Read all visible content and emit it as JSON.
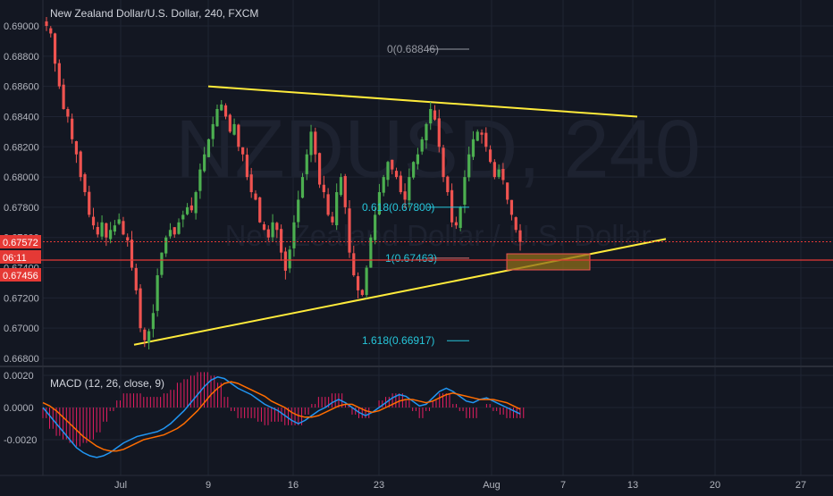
{
  "header": {
    "title": "New Zealand Dollar/U.S. Dollar, 240, FXCM",
    "watermark_main": "NZDUSD, 240",
    "watermark_sub": "New Zealand Dollar / U.S. Dollar"
  },
  "colors": {
    "background": "#131722",
    "grid": "#1f2433",
    "candle_up": "#4caf50",
    "candle_down": "#ef5350",
    "trendline": "#ffeb3b",
    "fib": "#26c6da",
    "price_line": "#e53935",
    "macd_line": "#2196f3",
    "signal_line": "#ff6d00",
    "hist_pos": "#e91e63",
    "hist_neg": "#e91e63",
    "box_fill": "#8d6e1a",
    "text": "#b2b5be"
  },
  "chart_data": [
    {
      "type": "line",
      "title": "New Zealand Dollar/U.S. Dollar, 240, FXCM",
      "subtitle": "",
      "xlabel": "",
      "ylabel": "",
      "x_ticks": [
        "Jul",
        "9",
        "16",
        "23",
        "Aug",
        "7",
        "13",
        "20",
        "27"
      ],
      "y_ticks": [
        "0.66800",
        "0.67000",
        "0.67200",
        "0.67400",
        "0.67600",
        "0.67800",
        "0.68000",
        "0.68200",
        "0.68400",
        "0.68600",
        "0.68800",
        "0.69000"
      ],
      "ylim": [
        0.6675,
        0.6905
      ],
      "grid": true,
      "legend": "none",
      "price_labels": [
        {
          "text": "0.67572",
          "value": 0.67572
        },
        {
          "text": "06:11",
          "value": 0.67463
        },
        {
          "text": "0.67456",
          "value": 0.67456
        }
      ],
      "fib_levels": [
        {
          "label": "0(0.68846)",
          "value": 0.68846
        },
        {
          "label": "0.618(0.67800)",
          "value": 0.678
        },
        {
          "label": "1(0.67463)",
          "value": 0.67463
        },
        {
          "label": "1.618(0.66917)",
          "value": 0.66917
        }
      ],
      "trendlines": [
        {
          "name": "upper",
          "points": [
            [
              0.2535,
              0.686
            ],
            [
              0.766,
              0.684
            ]
          ]
        },
        {
          "name": "lower",
          "points": [
            [
              0.163,
              0.6689
            ],
            [
              0.8,
              0.6759
            ]
          ]
        }
      ],
      "closes": [
        0.69,
        0.6895,
        0.6875,
        0.686,
        0.6845,
        0.684,
        0.6825,
        0.6815,
        0.68,
        0.679,
        0.6775,
        0.6768,
        0.6762,
        0.677,
        0.676,
        0.6765,
        0.6768,
        0.6772,
        0.6762,
        0.6758,
        0.674,
        0.6725,
        0.67,
        0.6692,
        0.6698,
        0.671,
        0.6735,
        0.675,
        0.676,
        0.6765,
        0.6762,
        0.677,
        0.6775,
        0.678,
        0.6778,
        0.679,
        0.6805,
        0.6815,
        0.6825,
        0.6835,
        0.6845,
        0.6848,
        0.684,
        0.683,
        0.6835,
        0.682,
        0.6815,
        0.68,
        0.679,
        0.6785,
        0.677,
        0.6765,
        0.676,
        0.677,
        0.6765,
        0.675,
        0.6738,
        0.6752,
        0.677,
        0.6785,
        0.68,
        0.6815,
        0.683,
        0.6815,
        0.6795,
        0.679,
        0.6775,
        0.677,
        0.679,
        0.68,
        0.678,
        0.675,
        0.6735,
        0.6725,
        0.6722,
        0.674,
        0.676,
        0.6775,
        0.679,
        0.68,
        0.681,
        0.6805,
        0.68,
        0.679,
        0.6785,
        0.68,
        0.681,
        0.6815,
        0.6825,
        0.6835,
        0.6845,
        0.6838,
        0.682,
        0.68,
        0.679,
        0.677,
        0.6768,
        0.678,
        0.68,
        0.6815,
        0.6825,
        0.683,
        0.6828,
        0.682,
        0.681,
        0.68,
        0.6805,
        0.6798,
        0.6785,
        0.6775,
        0.6765,
        0.6757
      ]
    },
    {
      "type": "line",
      "title": "MACD (12, 26, close, 9)",
      "xlabel": "",
      "ylabel": "",
      "y_ticks": [
        "0.0020",
        "0.0000",
        "-0.0020"
      ],
      "ylim": [
        -0.0038,
        0.0022
      ],
      "grid": true,
      "legend": "none",
      "series": [
        {
          "values": [
            0.0,
            -0.0005,
            -0.001,
            -0.0015,
            -0.002,
            -0.0025,
            -0.0028,
            -0.003,
            -0.0031,
            -0.003,
            -0.0028,
            -0.0025,
            -0.0022,
            -0.002,
            -0.0018,
            -0.0017,
            -0.0016,
            -0.0015,
            -0.0013,
            -0.001,
            -0.0006,
            -0.0002,
            0.0003,
            0.0008,
            0.0013,
            0.0017,
            0.0019,
            0.0018,
            0.0015,
            0.0012,
            0.001,
            0.0008,
            0.0005,
            0.0002,
            0.0,
            -0.0002,
            -0.0005,
            -0.0008,
            -0.001,
            -0.0008,
            -0.0005,
            -0.0002,
            0.0,
            0.0003,
            0.0005,
            0.0003,
            0.0,
            -0.0003,
            -0.0005,
            -0.0003,
            0.0,
            0.0003,
            0.0006,
            0.0008,
            0.0007,
            0.0004,
            0.0001,
            0.0002,
            0.0006,
            0.001,
            0.0012,
            0.001,
            0.0007,
            0.0004,
            0.0003,
            0.0005,
            0.0006,
            0.0004,
            0.0002,
            0.0,
            -0.0002,
            -0.0004
          ]
        },
        {
          "values": [
            0.0003,
            0.0001,
            -0.0002,
            -0.0006,
            -0.001,
            -0.0014,
            -0.0018,
            -0.0021,
            -0.0024,
            -0.0026,
            -0.0027,
            -0.0027,
            -0.0026,
            -0.0024,
            -0.0022,
            -0.002,
            -0.0019,
            -0.0018,
            -0.0017,
            -0.0015,
            -0.0013,
            -0.001,
            -0.0006,
            -0.0002,
            0.0003,
            0.0008,
            0.0012,
            0.0015,
            0.0016,
            0.0015,
            0.0013,
            0.0011,
            0.0009,
            0.0007,
            0.0004,
            0.0002,
            0.0,
            -0.0003,
            -0.0005,
            -0.0006,
            -0.0006,
            -0.0005,
            -0.0003,
            -0.0001,
            0.0001,
            0.0002,
            0.0002,
            0.0,
            -0.0002,
            -0.0003,
            -0.0002,
            0.0,
            0.0002,
            0.0004,
            0.0005,
            0.0005,
            0.0004,
            0.0003,
            0.0004,
            0.0006,
            0.0008,
            0.0009,
            0.0008,
            0.0007,
            0.0006,
            0.0005,
            0.0005,
            0.0005,
            0.0004,
            0.0003,
            0.0001,
            -0.0001
          ]
        }
      ]
    }
  ]
}
